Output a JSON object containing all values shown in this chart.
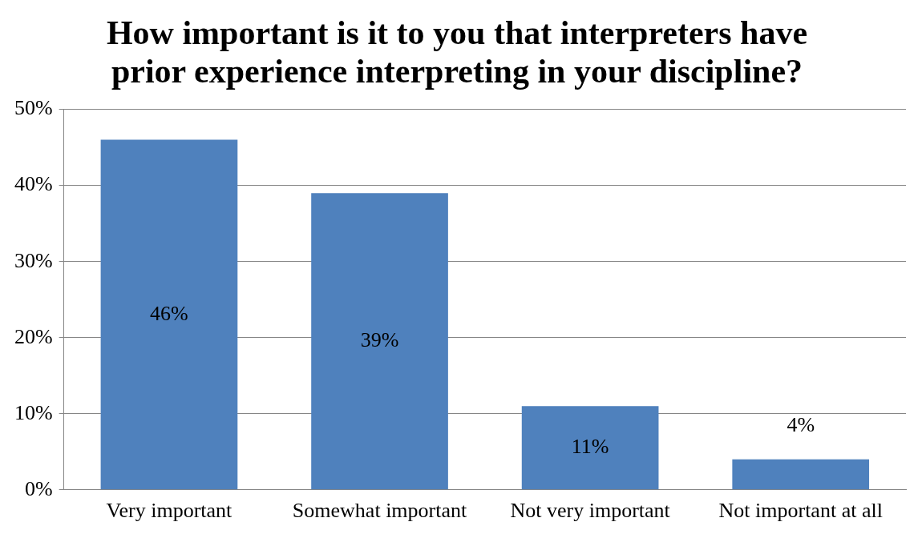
{
  "chart_data": {
    "type": "bar",
    "title": "How important is it to you that interpreters have prior experience interpreting in your discipline?",
    "categories": [
      "Very important",
      "Somewhat important",
      "Not very important",
      "Not important at all"
    ],
    "values": [
      46,
      39,
      11,
      4
    ],
    "color": "#4f81bd",
    "value_labels": [
      "46%",
      "39%",
      "11%",
      "4%"
    ],
    "ylim": [
      0,
      50
    ],
    "yticks": [
      {
        "value": 0,
        "label": "0%"
      },
      {
        "value": 10,
        "label": "10%"
      },
      {
        "value": 20,
        "label": "20%"
      },
      {
        "value": 30,
        "label": "30%"
      },
      {
        "value": 40,
        "label": "40%"
      },
      {
        "value": 50,
        "label": "50%"
      }
    ],
    "grid": "y",
    "legend": false
  }
}
